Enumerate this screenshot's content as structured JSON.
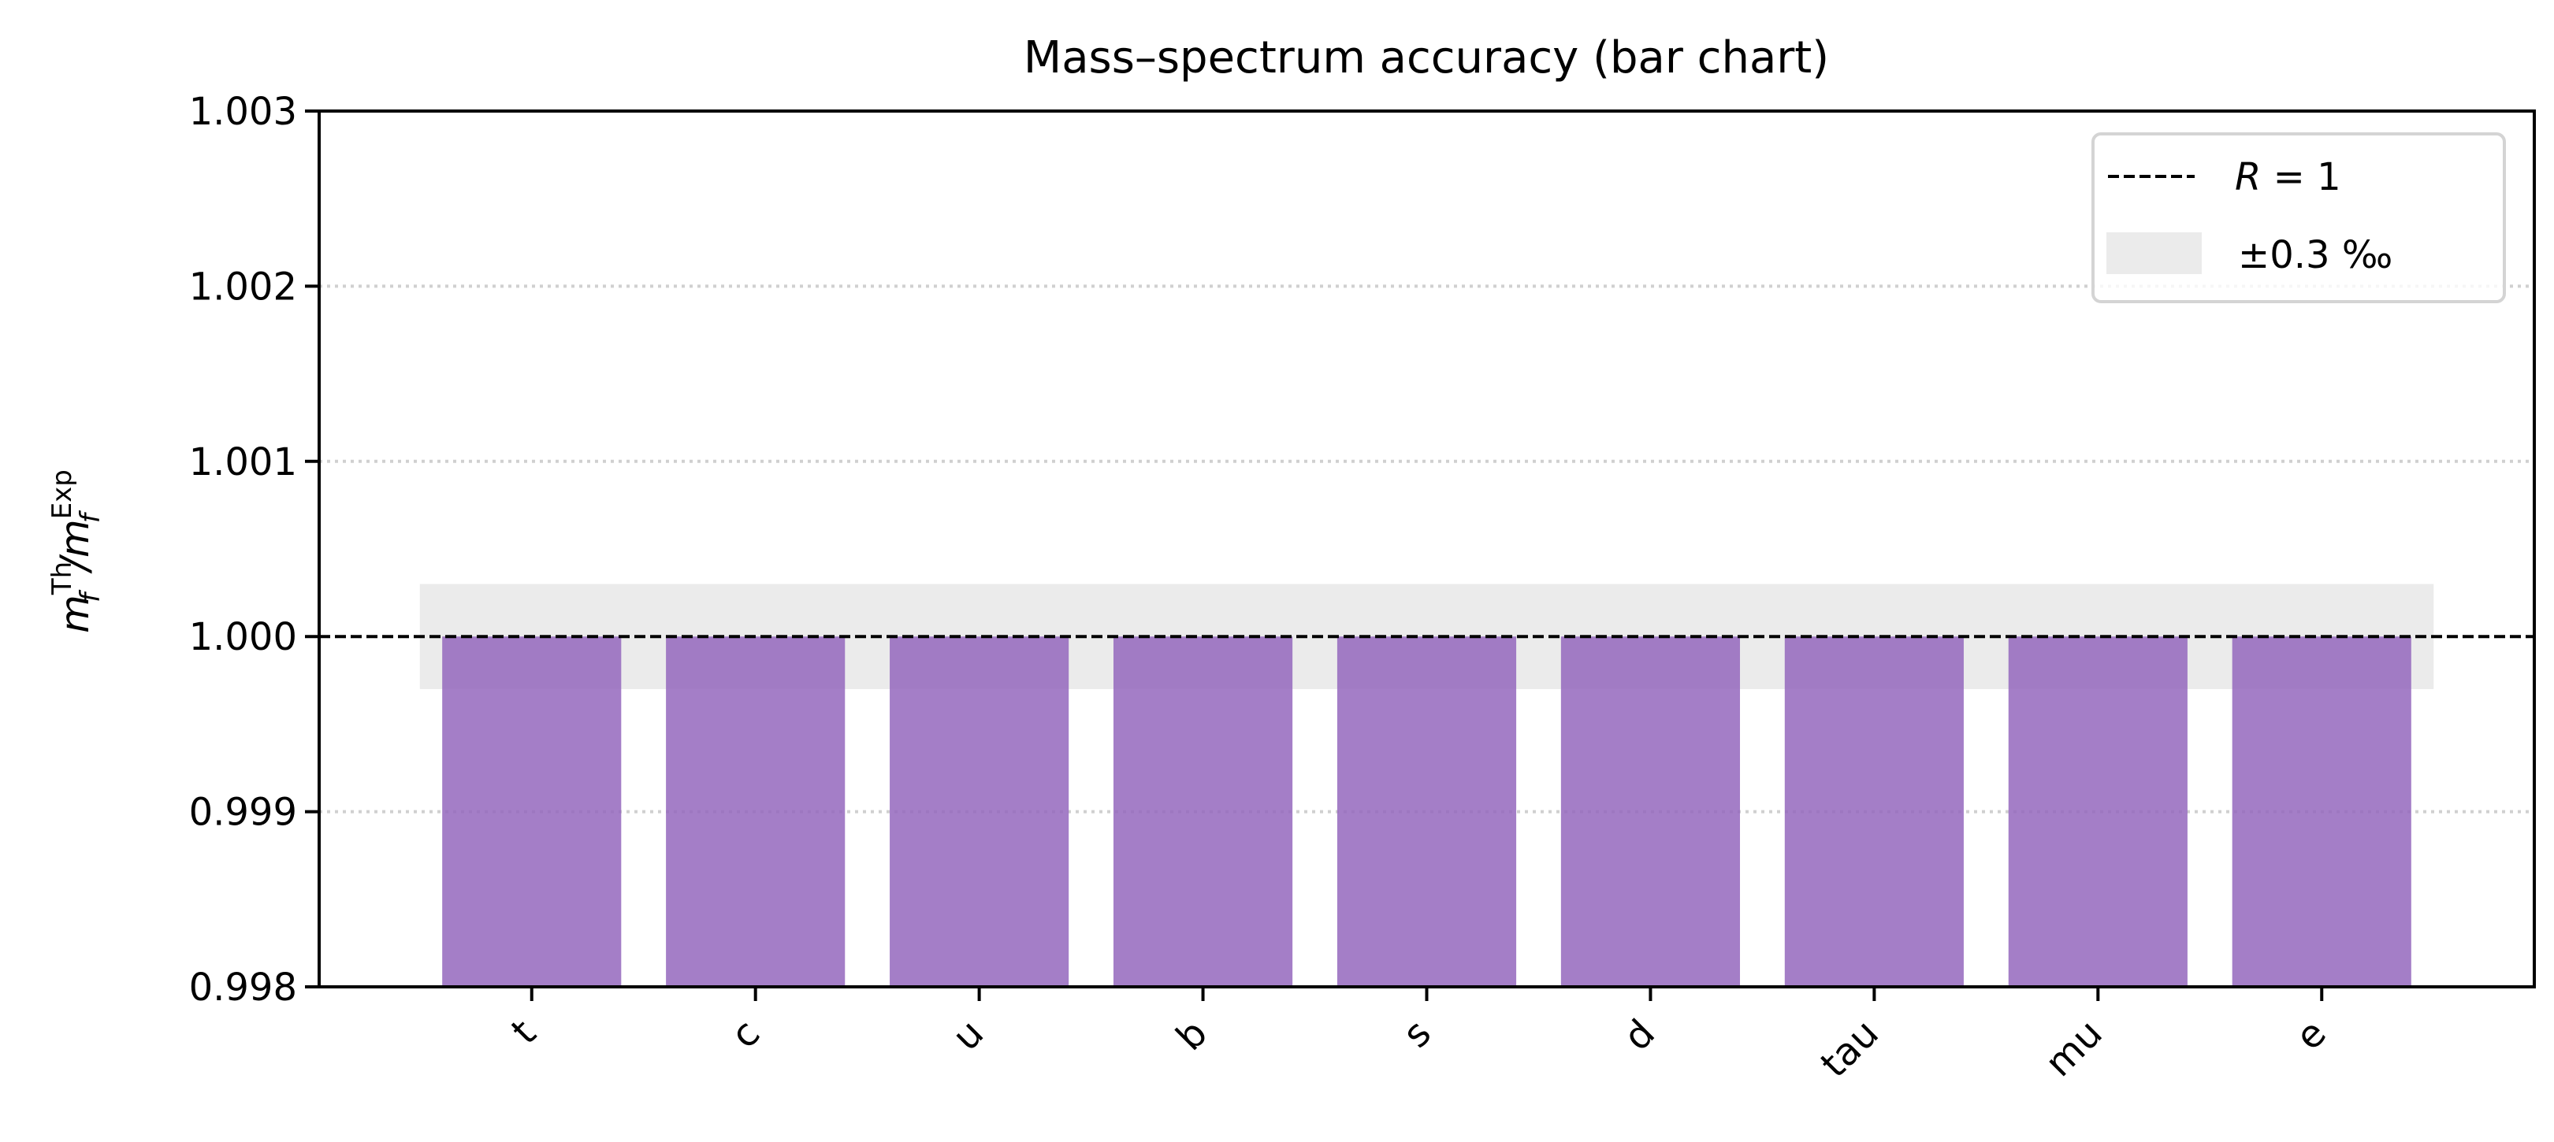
{
  "chart_data": {
    "type": "bar",
    "title": "Mass–spectrum accuracy (bar chart)",
    "ylabel": {
      "base": "m",
      "sub": "f",
      "sup_num": "Th",
      "sup_den": "Exp"
    },
    "xlabel": "",
    "categories": [
      "t",
      "c",
      "u",
      "b",
      "s",
      "d",
      "tau",
      "mu",
      "e"
    ],
    "values": [
      1.0,
      1.0,
      1.0,
      1.0,
      1.0,
      1.0,
      1.0,
      1.0,
      1.0
    ],
    "ylim": [
      0.998,
      1.003
    ],
    "yticks": [
      "0.998",
      "0.999",
      "1.000",
      "1.001",
      "1.002",
      "1.003"
    ],
    "grid": "y dotted",
    "bar_color": "#9467bd",
    "reference_line": {
      "y": 1.0,
      "style": "dashed",
      "color": "#000000",
      "label_italic": "R",
      "label_rest": " = 1"
    },
    "band": {
      "center": 1.0,
      "halfwidth": 0.0003,
      "color": "#ebebeb",
      "label": "±0.3 ‰"
    },
    "legend": "top-right"
  }
}
